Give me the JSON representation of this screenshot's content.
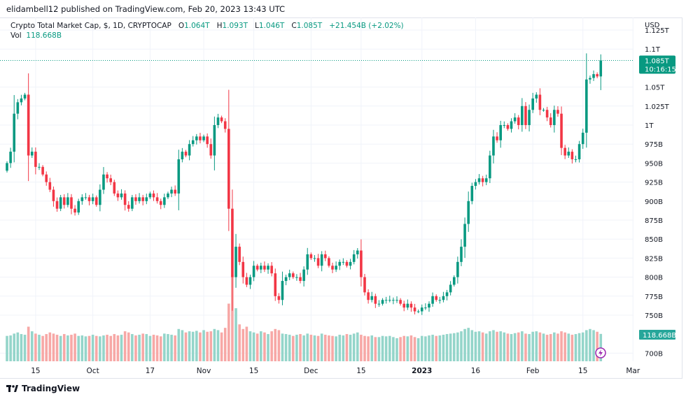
{
  "header": {
    "published": "elidambell12 published on TradingView.com, Feb 20, 2023 13:43 UTC"
  },
  "legend": {
    "symbol": "Crypto Total Market Cap, $, 1D, CRYPTOCAP",
    "o_label": "O",
    "o": "1.064T",
    "h_label": "H",
    "h": "1.093T",
    "l_label": "L",
    "l": "1.046T",
    "c_label": "C",
    "c": "1.085T",
    "change": "+21.454B (+2.02%)",
    "vol_label": "Vol",
    "vol": "118.668B"
  },
  "footer": {
    "logo": "TradingView"
  },
  "colors": {
    "up": "#089981",
    "down": "#f23645",
    "vol_up": "#94d5ca",
    "vol_down": "#f7a8a6",
    "grid": "#f0f3fa"
  },
  "chart_data": {
    "type": "candlestick",
    "start_date": "2022-09-07",
    "end_date": "2023-02-20",
    "currency": "USD",
    "y_unit": "B",
    "ylim": [
      700,
      1125
    ],
    "y_ticks": [
      {
        "v": 1125,
        "label": "1.125T"
      },
      {
        "v": 1100,
        "label": "1.1T"
      },
      {
        "v": 1050,
        "label": "1.05T"
      },
      {
        "v": 1025,
        "label": "1.025T"
      },
      {
        "v": 1000,
        "label": "1T"
      },
      {
        "v": 975,
        "label": "975B"
      },
      {
        "v": 950,
        "label": "950B"
      },
      {
        "v": 925,
        "label": "925B"
      },
      {
        "v": 900,
        "label": "900B"
      },
      {
        "v": 875,
        "label": "875B"
      },
      {
        "v": 850,
        "label": "850B"
      },
      {
        "v": 825,
        "label": "825B"
      },
      {
        "v": 800,
        "label": "800B"
      },
      {
        "v": 775,
        "label": "775B"
      },
      {
        "v": 750,
        "label": "750B"
      },
      {
        "v": 700,
        "label": "700B"
      }
    ],
    "x_ticks": [
      {
        "day": 8,
        "label": "15"
      },
      {
        "day": 24,
        "label": "Oct"
      },
      {
        "day": 40,
        "label": "17"
      },
      {
        "day": 55,
        "label": "Nov"
      },
      {
        "day": 69,
        "label": "15"
      },
      {
        "day": 85,
        "label": "Dec"
      },
      {
        "day": 99,
        "label": "15"
      },
      {
        "day": 116,
        "label": "2023",
        "bold": true
      },
      {
        "day": 131,
        "label": "16"
      },
      {
        "day": 147,
        "label": "Feb"
      },
      {
        "day": 161,
        "label": "15"
      },
      {
        "day": 175,
        "label": "Mar"
      }
    ],
    "close": [
      950,
      965,
      1015,
      1030,
      1035,
      1040,
      960,
      965,
      945,
      945,
      935,
      925,
      915,
      900,
      890,
      905,
      895,
      905,
      890,
      885,
      900,
      905,
      905,
      900,
      905,
      895,
      915,
      935,
      930,
      925,
      910,
      905,
      910,
      895,
      890,
      905,
      900,
      905,
      900,
      905,
      910,
      905,
      900,
      895,
      905,
      910,
      915,
      910,
      955,
      965,
      960,
      975,
      980,
      985,
      980,
      985,
      975,
      960,
      1000,
      1010,
      1005,
      995,
      890,
      800,
      840,
      820,
      800,
      790,
      800,
      815,
      810,
      815,
      810,
      815,
      805,
      775,
      770,
      795,
      800,
      805,
      800,
      800,
      795,
      810,
      830,
      825,
      825,
      815,
      830,
      825,
      815,
      810,
      815,
      820,
      820,
      815,
      820,
      830,
      835,
      800,
      780,
      770,
      775,
      765,
      765,
      770,
      770,
      770,
      770,
      770,
      765,
      760,
      765,
      760,
      755,
      755,
      760,
      760,
      765,
      775,
      770,
      770,
      775,
      780,
      790,
      800,
      820,
      840,
      870,
      900,
      920,
      925,
      930,
      925,
      930,
      960,
      985,
      980,
      1000,
      1000,
      995,
      1005,
      1010,
      1000,
      1025,
      1000,
      1020,
      1035,
      1040,
      1020,
      1020,
      1010,
      1000,
      1020,
      1015,
      970,
      960,
      965,
      955,
      955,
      975,
      990,
      1060,
      1062,
      1067,
      1064,
      1085
    ],
    "first_open": 940,
    "last_candle": {
      "open": 1064,
      "high": 1093,
      "low": 1046,
      "close": 1085
    },
    "volume": [
      110,
      112,
      120,
      125,
      118,
      115,
      150,
      130,
      120,
      115,
      110,
      118,
      125,
      120,
      115,
      110,
      118,
      112,
      115,
      120,
      110,
      112,
      108,
      110,
      115,
      110,
      108,
      112,
      115,
      110,
      118,
      112,
      115,
      130,
      125,
      118,
      112,
      115,
      120,
      118,
      110,
      115,
      112,
      108,
      120,
      118,
      115,
      112,
      140,
      135,
      125,
      130,
      128,
      132,
      125,
      135,
      128,
      130,
      140,
      135,
      125,
      145,
      250,
      375,
      230,
      160,
      140,
      150,
      130,
      125,
      120,
      130,
      125,
      118,
      130,
      140,
      135,
      120,
      118,
      115,
      110,
      115,
      118,
      112,
      120,
      115,
      112,
      110,
      120,
      115,
      112,
      110,
      108,
      115,
      112,
      118,
      115,
      120,
      125,
      115,
      110,
      108,
      112,
      105,
      105,
      110,
      108,
      110,
      105,
      100,
      105,
      110,
      108,
      112,
      105,
      100,
      110,
      108,
      112,
      115,
      110,
      112,
      115,
      118,
      120,
      122,
      125,
      130,
      140,
      145,
      135,
      128,
      130,
      125,
      120,
      130,
      135,
      128,
      130,
      125,
      120,
      118,
      122,
      125,
      130,
      120,
      118,
      128,
      130,
      125,
      120,
      115,
      118,
      125,
      120,
      130,
      125,
      120,
      115,
      118,
      122,
      125,
      135,
      140,
      135,
      128,
      118.668
    ],
    "current_price_label": "1.085T",
    "countdown": "10:16:15",
    "current_volume_label": "118.668B"
  }
}
